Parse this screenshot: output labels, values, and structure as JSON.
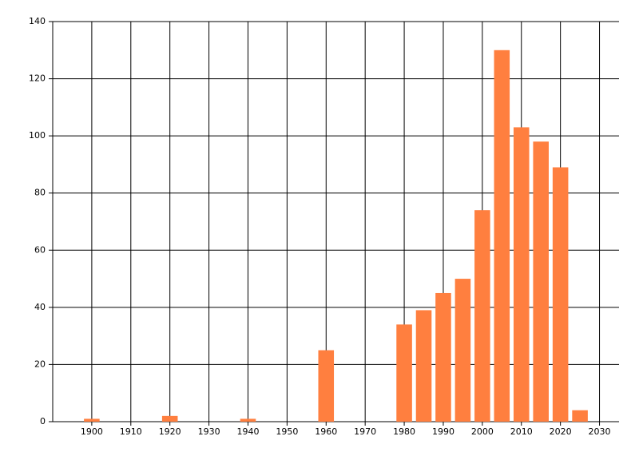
{
  "chart_data": {
    "type": "bar",
    "x": [
      1900,
      1920,
      1940,
      1960,
      1980,
      1985,
      1990,
      1995,
      2000,
      2005,
      2010,
      2015,
      2020,
      2025
    ],
    "values": [
      1,
      2,
      1,
      25,
      34,
      39,
      45,
      50,
      74,
      130,
      103,
      98,
      89,
      4
    ],
    "color": "#ff7f3f",
    "xlim": [
      1890,
      2035
    ],
    "xticks": [
      1900,
      1910,
      1920,
      1930,
      1940,
      1950,
      1960,
      1970,
      1980,
      1990,
      2000,
      2010,
      2020,
      2030
    ],
    "ylim": [
      0,
      140
    ],
    "yticks": [
      0,
      20,
      40,
      60,
      80,
      100,
      120,
      140
    ],
    "grid": true
  }
}
